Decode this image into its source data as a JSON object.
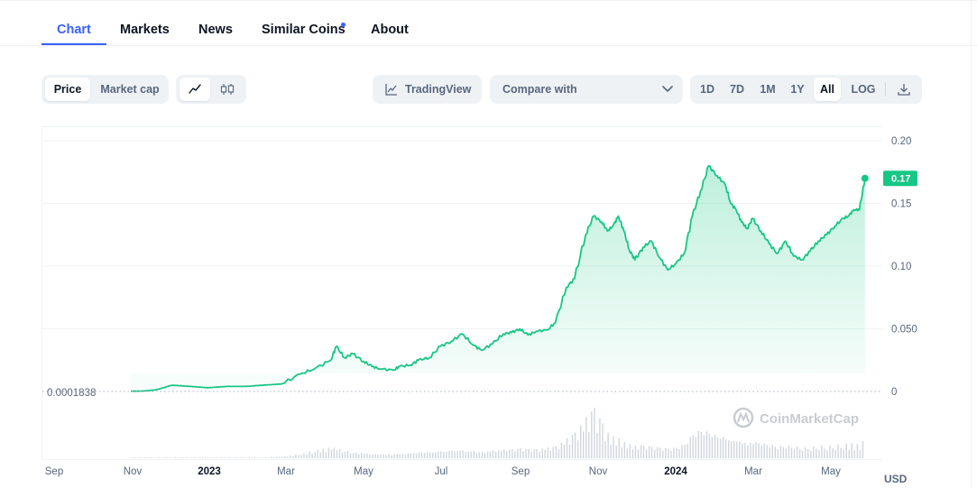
{
  "tabs": [
    {
      "label": "Chart",
      "active": true
    },
    {
      "label": "Markets"
    },
    {
      "label": "News"
    },
    {
      "label": "Similar Coins",
      "dot": true
    },
    {
      "label": "About"
    }
  ],
  "toolbar": {
    "price_label": "Price",
    "market_cap_label": "Market cap",
    "line_icon": "line-chart-icon",
    "candle_icon": "candlestick-icon",
    "tradingview_label": "TradingView",
    "tradingview_icon": "area-chart-icon",
    "compare_label": "Compare with",
    "compare_icon": "chevron-down-icon",
    "ranges": [
      "1D",
      "7D",
      "1M",
      "1Y",
      "All"
    ],
    "active_range": "All",
    "log_label": "LOG",
    "download_icon": "download-icon"
  },
  "accent": "#3861fb",
  "line_color": "#16c784",
  "chart_data": {
    "type": "area",
    "currency": "USD",
    "start_value_label": "0.0001838",
    "current_price_label": "0.17",
    "yticks": [
      "0.20",
      "0.15",
      "0.10",
      "0.050",
      "0"
    ],
    "ylim": [
      0,
      0.2
    ],
    "xticks": [
      "Sep",
      "Nov",
      "2023",
      "Mar",
      "May",
      "Jul",
      "Sep",
      "Nov",
      "2024",
      "Mar",
      "May"
    ],
    "bold_xticks": [
      "2023",
      "2024"
    ],
    "watermark": "CoinMarketCap",
    "x_months": [
      2.8,
      3.2,
      3.7,
      4.3,
      5.0,
      5.6,
      6.3,
      7.0,
      7.6,
      8.3,
      9.0,
      9.5,
      10.1,
      10.3,
      10.6,
      10.9,
      11.3,
      11.6,
      11.9,
      12.4,
      12.6,
      13.0,
      13.3,
      13.7,
      14.1,
      14.5,
      14.9,
      15.3,
      15.6,
      16.0,
      16.4,
      16.7,
      17.0,
      17.3,
      17.6,
      18.0,
      18.3,
      18.7,
      19.0,
      19.4,
      19.7,
      20.0,
      20.2,
      20.4,
      20.6,
      20.8,
      21.0,
      21.2,
      21.5,
      21.8,
      22.1,
      22.4,
      22.7,
      23.0,
      23.3,
      23.6,
      23.9,
      24.2,
      24.5,
      24.7,
      24.9,
      25.1,
      25.3,
      25.5,
      25.8,
      26.1,
      26.4,
      26.7,
      27.0,
      27.3,
      27.6,
      27.9,
      28.2,
      28.5,
      28.8,
      29.0,
      29.2,
      29.4,
      29.6
    ],
    "values": [
      0.0002,
      0.0003,
      0.0012,
      0.005,
      0.004,
      0.003,
      0.004,
      0.004,
      0.005,
      0.006,
      0.014,
      0.018,
      0.025,
      0.036,
      0.027,
      0.03,
      0.024,
      0.02,
      0.018,
      0.017,
      0.02,
      0.021,
      0.025,
      0.027,
      0.036,
      0.04,
      0.046,
      0.037,
      0.033,
      0.038,
      0.046,
      0.047,
      0.05,
      0.045,
      0.048,
      0.049,
      0.055,
      0.083,
      0.09,
      0.125,
      0.14,
      0.135,
      0.128,
      0.132,
      0.14,
      0.128,
      0.113,
      0.105,
      0.115,
      0.12,
      0.107,
      0.097,
      0.102,
      0.11,
      0.14,
      0.16,
      0.18,
      0.172,
      0.165,
      0.15,
      0.145,
      0.135,
      0.13,
      0.138,
      0.128,
      0.118,
      0.11,
      0.12,
      0.108,
      0.105,
      0.112,
      0.12,
      0.125,
      0.132,
      0.138,
      0.14,
      0.145,
      0.145,
      0.17
    ],
    "volumes": [
      1,
      1,
      1,
      1,
      1,
      1,
      1,
      1,
      1,
      2,
      5,
      9,
      12,
      11,
      9,
      7,
      6,
      5,
      5,
      5,
      5,
      6,
      7,
      7,
      8,
      9,
      9,
      8,
      7,
      9,
      10,
      10,
      11,
      10,
      10,
      12,
      13,
      22,
      28,
      45,
      55,
      38,
      28,
      24,
      22,
      18,
      16,
      14,
      14,
      13,
      12,
      11,
      12,
      16,
      28,
      32,
      30,
      26,
      24,
      22,
      22,
      20,
      18,
      20,
      18,
      16,
      14,
      15,
      14,
      12,
      13,
      14,
      14,
      15,
      16,
      17,
      16,
      15,
      22
    ]
  }
}
